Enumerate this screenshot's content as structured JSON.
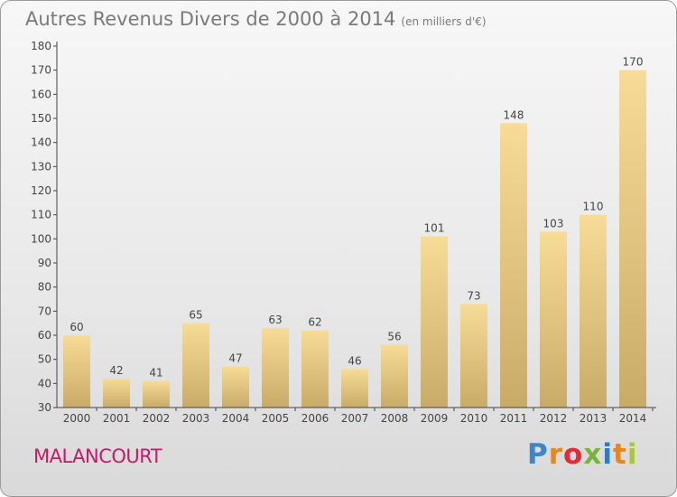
{
  "header": {
    "title": "Autres Revenus Divers de 2000 à 2014",
    "unit": "(en milliers d'€)"
  },
  "place": "MALANCOURT",
  "logo": {
    "text": "Proxiti",
    "letter_colors": [
      "#3d87c5",
      "#e5891f",
      "#e32a36",
      "#78b43a",
      "#2b7cc2",
      "#e5891f",
      "#a8c83a"
    ]
  },
  "chart_data": {
    "type": "bar",
    "categories": [
      "2000",
      "2001",
      "2002",
      "2003",
      "2004",
      "2005",
      "2006",
      "2007",
      "2008",
      "2009",
      "2010",
      "2011",
      "2012",
      "2013",
      "2014"
    ],
    "values": [
      60,
      42,
      41,
      65,
      47,
      63,
      62,
      46,
      56,
      101,
      73,
      148,
      103,
      110,
      170
    ],
    "ylim": [
      30,
      180
    ],
    "yticks": [
      30,
      40,
      50,
      60,
      70,
      80,
      90,
      100,
      110,
      120,
      130,
      140,
      150,
      160,
      170,
      180
    ],
    "grid": false,
    "colors": {
      "bar_top": "#f6dc97",
      "bar_bottom": "#c9ab68",
      "axis": "#444444",
      "text": "#444444"
    }
  }
}
